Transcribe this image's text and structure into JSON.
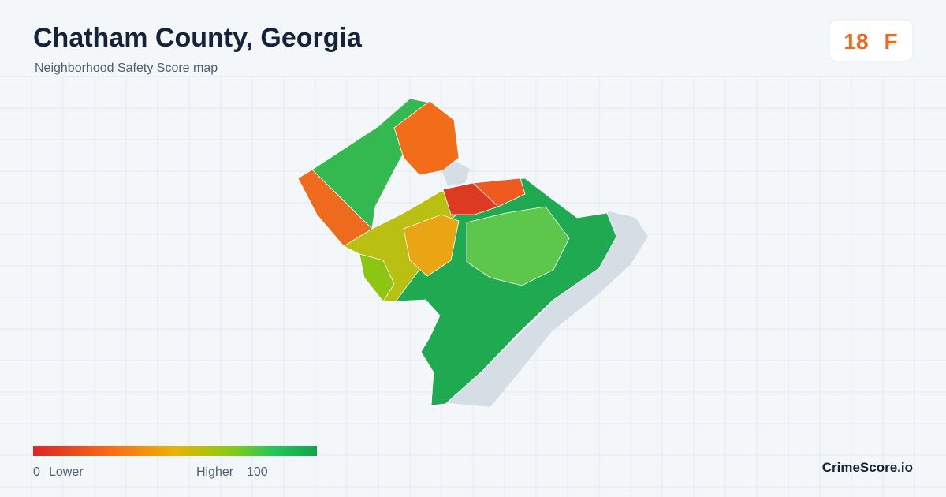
{
  "header": {
    "title": "Chatham County, Georgia",
    "subtitle": "Neighborhood Safety Score map"
  },
  "score": {
    "value": 18,
    "grade": "F"
  },
  "legend": {
    "min": 0,
    "min_label": "Lower",
    "max_label": "Higher",
    "max": 100
  },
  "brand": "CrimeScore.io"
}
